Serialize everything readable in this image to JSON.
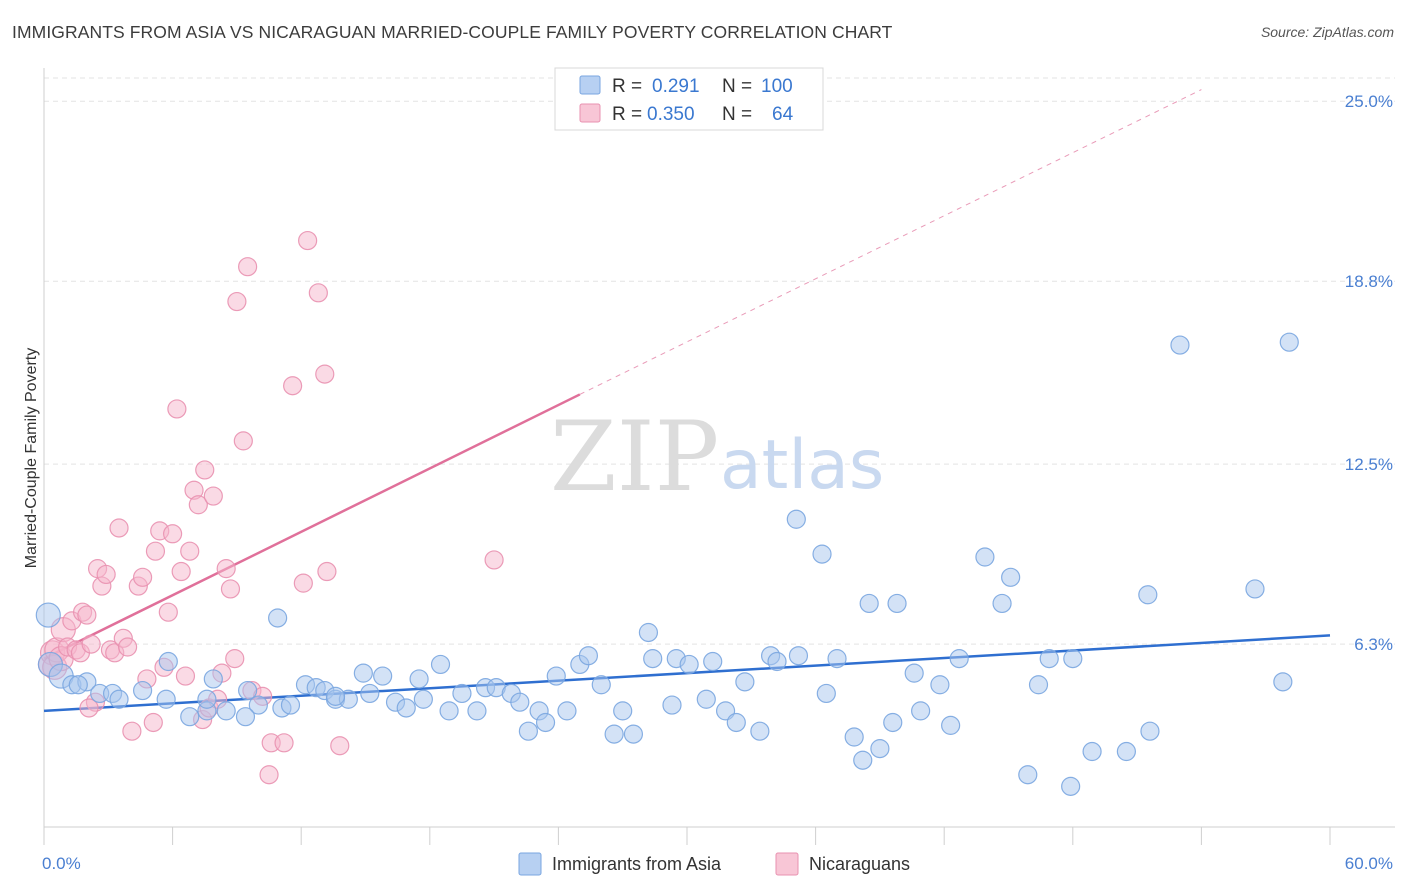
{
  "title": "IMMIGRANTS FROM ASIA VS NICARAGUAN MARRIED-COUPLE FAMILY POVERTY CORRELATION CHART",
  "source": "Source: ZipAtlas.com",
  "watermark": {
    "part1": "ZIP",
    "part2": "atlas"
  },
  "colors": {
    "asia_fill": "#a8c6ee",
    "asia_stroke": "#7aa6e0",
    "asia_line": "#2f6fd0",
    "nica_fill": "#f6b6cb",
    "nica_stroke": "#e991b0",
    "nica_line": "#e0709a",
    "grid": "#e3e3e3",
    "tick_text": "#4a7fd1"
  },
  "legend": {
    "rows": [
      {
        "r_label": "R =",
        "r_value": "0.291",
        "n_label": "N =",
        "n_value": "100"
      },
      {
        "r_label": "R =",
        "r_value": "0.350",
        "n_label": "N =",
        "n_value": "64"
      }
    ]
  },
  "bottom_legend": [
    "Immigrants from Asia",
    "Nicaraguans"
  ],
  "chart_data": {
    "type": "scatter",
    "title": "IMMIGRANTS FROM ASIA VS NICARAGUAN MARRIED-COUPLE FAMILY POVERTY CORRELATION CHART",
    "xlabel": "",
    "ylabel": "Married-Couple Family Poverty",
    "xlim": [
      0,
      60
    ],
    "ylim": [
      0,
      25.8
    ],
    "x_tick_labels": [
      "0.0%",
      "60.0%"
    ],
    "y_ticks": [
      6.3,
      12.5,
      18.8,
      25.0
    ],
    "y_tick_labels": [
      "6.3%",
      "12.5%",
      "18.8%",
      "25.0%"
    ],
    "grid": true,
    "legend_position": "top-center",
    "series": [
      {
        "name": "Immigrants from Asia",
        "color": "#a8c6ee",
        "r": 0.291,
        "n": 100,
        "trend": {
          "x": [
            0,
            60
          ],
          "y": [
            4.0,
            6.6
          ],
          "dashed_extension": false
        },
        "points": [
          [
            0.3,
            5.6
          ],
          [
            0.2,
            7.3
          ],
          [
            0.8,
            5.2
          ],
          [
            1.3,
            4.9
          ],
          [
            2.0,
            5.0
          ],
          [
            1.6,
            4.9
          ],
          [
            2.6,
            4.6
          ],
          [
            3.2,
            4.6
          ],
          [
            3.5,
            4.4
          ],
          [
            4.6,
            4.7
          ],
          [
            5.7,
            4.4
          ],
          [
            5.8,
            5.7
          ],
          [
            6.8,
            3.8
          ],
          [
            7.6,
            4.0
          ],
          [
            7.6,
            4.4
          ],
          [
            7.9,
            5.1
          ],
          [
            8.5,
            4.0
          ],
          [
            9.5,
            4.7
          ],
          [
            10.0,
            4.2
          ],
          [
            11.1,
            4.1
          ],
          [
            10.9,
            7.2
          ],
          [
            11.5,
            4.2
          ],
          [
            12.2,
            4.9
          ],
          [
            12.7,
            4.8
          ],
          [
            13.1,
            4.7
          ],
          [
            13.6,
            4.4
          ],
          [
            14.2,
            4.4
          ],
          [
            14.9,
            5.3
          ],
          [
            15.2,
            4.6
          ],
          [
            15.8,
            5.2
          ],
          [
            16.4,
            4.3
          ],
          [
            16.9,
            4.1
          ],
          [
            17.5,
            5.1
          ],
          [
            17.7,
            4.4
          ],
          [
            18.5,
            5.6
          ],
          [
            18.9,
            4.0
          ],
          [
            19.5,
            4.6
          ],
          [
            20.2,
            4.0
          ],
          [
            20.6,
            4.8
          ],
          [
            21.1,
            4.8
          ],
          [
            21.8,
            4.6
          ],
          [
            22.2,
            4.3
          ],
          [
            22.6,
            3.3
          ],
          [
            23.1,
            4.0
          ],
          [
            23.4,
            3.6
          ],
          [
            23.9,
            5.2
          ],
          [
            24.4,
            4.0
          ],
          [
            25.0,
            5.6
          ],
          [
            25.4,
            5.9
          ],
          [
            26.0,
            4.9
          ],
          [
            26.6,
            3.2
          ],
          [
            27.0,
            4.0
          ],
          [
            27.5,
            3.2
          ],
          [
            28.2,
            6.7
          ],
          [
            28.4,
            5.8
          ],
          [
            29.3,
            4.2
          ],
          [
            29.5,
            5.8
          ],
          [
            30.1,
            5.6
          ],
          [
            30.9,
            4.4
          ],
          [
            31.2,
            5.7
          ],
          [
            31.8,
            4.0
          ],
          [
            32.3,
            3.6
          ],
          [
            32.7,
            5.0
          ],
          [
            33.4,
            3.3
          ],
          [
            33.9,
            5.9
          ],
          [
            34.2,
            5.7
          ],
          [
            35.1,
            10.6
          ],
          [
            35.2,
            5.9
          ],
          [
            36.3,
            9.4
          ],
          [
            36.5,
            4.6
          ],
          [
            37.0,
            5.8
          ],
          [
            37.8,
            3.1
          ],
          [
            38.2,
            2.3
          ],
          [
            38.5,
            7.7
          ],
          [
            39.0,
            2.7
          ],
          [
            39.6,
            3.6
          ],
          [
            39.8,
            7.7
          ],
          [
            40.6,
            5.3
          ],
          [
            40.9,
            4.0
          ],
          [
            41.8,
            4.9
          ],
          [
            42.3,
            3.5
          ],
          [
            42.7,
            5.8
          ],
          [
            43.9,
            9.3
          ],
          [
            44.7,
            7.7
          ],
          [
            45.1,
            8.6
          ],
          [
            45.9,
            1.8
          ],
          [
            46.4,
            4.9
          ],
          [
            46.9,
            5.8
          ],
          [
            47.9,
            1.4
          ],
          [
            48.0,
            5.8
          ],
          [
            48.9,
            2.6
          ],
          [
            50.5,
            2.6
          ],
          [
            51.5,
            8.0
          ],
          [
            51.6,
            3.3
          ],
          [
            53.0,
            16.6
          ],
          [
            56.5,
            8.2
          ],
          [
            58.1,
            16.7
          ],
          [
            57.8,
            5.0
          ],
          [
            9.4,
            3.8
          ],
          [
            13.6,
            4.5
          ]
        ]
      },
      {
        "name": "Nicaraguans",
        "color": "#f6b6cb",
        "r": 0.35,
        "n": 64,
        "trend": {
          "x": [
            0,
            25
          ],
          "y": [
            5.8,
            14.9
          ],
          "dashed_extension_to": [
            54,
            25.4
          ]
        },
        "points": [
          [
            0.3,
            5.6
          ],
          [
            0.4,
            6.0
          ],
          [
            0.5,
            5.5
          ],
          [
            0.6,
            6.1
          ],
          [
            0.8,
            5.8
          ],
          [
            0.9,
            6.8
          ],
          [
            1.1,
            6.2
          ],
          [
            1.3,
            7.1
          ],
          [
            1.5,
            6.1
          ],
          [
            1.7,
            6.0
          ],
          [
            1.8,
            7.4
          ],
          [
            2.0,
            7.3
          ],
          [
            2.2,
            6.3
          ],
          [
            2.5,
            8.9
          ],
          [
            2.7,
            8.3
          ],
          [
            2.9,
            8.7
          ],
          [
            3.1,
            6.1
          ],
          [
            3.3,
            6.0
          ],
          [
            3.5,
            10.3
          ],
          [
            3.7,
            6.5
          ],
          [
            3.9,
            6.2
          ],
          [
            4.1,
            3.3
          ],
          [
            4.4,
            8.3
          ],
          [
            4.6,
            8.6
          ],
          [
            4.8,
            5.1
          ],
          [
            5.1,
            3.6
          ],
          [
            5.2,
            9.5
          ],
          [
            5.4,
            10.2
          ],
          [
            5.6,
            5.5
          ],
          [
            5.8,
            7.4
          ],
          [
            6.0,
            10.1
          ],
          [
            6.2,
            14.4
          ],
          [
            6.4,
            8.8
          ],
          [
            6.6,
            5.2
          ],
          [
            6.8,
            9.5
          ],
          [
            7.0,
            11.6
          ],
          [
            7.2,
            11.1
          ],
          [
            7.4,
            3.7
          ],
          [
            7.5,
            12.3
          ],
          [
            7.7,
            4.1
          ],
          [
            7.9,
            11.4
          ],
          [
            8.1,
            4.4
          ],
          [
            8.3,
            5.3
          ],
          [
            8.5,
            8.9
          ],
          [
            8.7,
            8.2
          ],
          [
            8.9,
            5.8
          ],
          [
            9.0,
            18.1
          ],
          [
            9.3,
            13.3
          ],
          [
            9.5,
            19.3
          ],
          [
            9.7,
            4.7
          ],
          [
            10.2,
            4.5
          ],
          [
            10.5,
            1.8
          ],
          [
            10.6,
            2.9
          ],
          [
            11.2,
            2.9
          ],
          [
            11.6,
            15.2
          ],
          [
            12.1,
            8.4
          ],
          [
            12.3,
            20.2
          ],
          [
            12.8,
            18.4
          ],
          [
            13.1,
            15.6
          ],
          [
            13.2,
            8.8
          ],
          [
            13.8,
            2.8
          ],
          [
            21.0,
            9.2
          ],
          [
            2.4,
            4.3
          ],
          [
            2.1,
            4.1
          ]
        ]
      }
    ]
  }
}
